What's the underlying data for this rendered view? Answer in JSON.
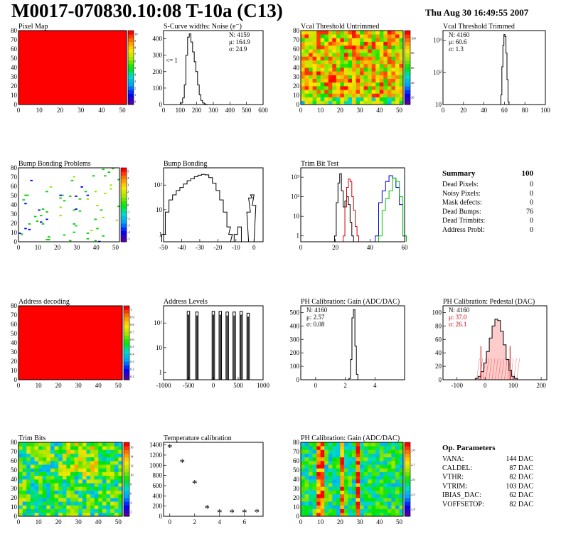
{
  "header": {
    "title": "M0017-070830.10:08 T-10a (C13)",
    "timestamp": "Thu Aug 30 16:49:55 2007"
  },
  "colors": {
    "frame": "#000000",
    "map_red": "#ff0000",
    "trim_black": "#000000",
    "trim_red": "#d00000",
    "trim_blue": "#0000c8",
    "trim_green": "#00c800",
    "pedestal_red": "#cc0000"
  },
  "summary": {
    "title": "Summary",
    "total": "100",
    "rows": [
      {
        "label": "Dead Pixels:",
        "value": "0"
      },
      {
        "label": "Noisy Pixels:",
        "value": "0"
      },
      {
        "label": "Mask defects:",
        "value": "0"
      },
      {
        "label": "Dead Bumps:",
        "value": "76"
      },
      {
        "label": "Dead Trimbits:",
        "value": "0"
      },
      {
        "label": "Address Probl:",
        "value": "0"
      }
    ]
  },
  "parameters": {
    "title": "Op. Parameters",
    "rows": [
      {
        "label": "VANA:",
        "value": "144 DAC"
      },
      {
        "label": "CALDEL:",
        "value": "87 DAC"
      },
      {
        "label": "VTHR:",
        "value": "82 DAC"
      },
      {
        "label": "VTRIM:",
        "value": "103 DAC"
      },
      {
        "label": "IBIAS_DAC:",
        "value": "62 DAC"
      },
      {
        "label": "VOFFSETOP:",
        "value": "82 DAC"
      }
    ]
  },
  "chart_data": [
    {
      "id": "pixel-map",
      "type": "heatmap",
      "title": "Pixel Map",
      "xlim": [
        0,
        52
      ],
      "ylim": [
        0,
        80
      ],
      "xticks": [
        0,
        10,
        20,
        30,
        40,
        50
      ],
      "yticks": [
        0,
        10,
        20,
        30,
        40,
        50,
        60,
        70,
        80
      ],
      "fill": "uniform",
      "fill_value": 10,
      "palette_ticks": [
        "0",
        "1",
        "2",
        "3",
        "4",
        "5",
        "6",
        "7",
        "8",
        "9",
        "10"
      ]
    },
    {
      "id": "scurve-noise",
      "type": "line",
      "title": "S-Curve widths: Noise (e⁻)",
      "xlim": [
        0,
        600
      ],
      "ylim": [
        0,
        450
      ],
      "xticks": [
        0,
        100,
        200,
        300,
        400,
        500,
        600
      ],
      "yticks": [
        0,
        100,
        200,
        300,
        400
      ],
      "annotation": "<= 1",
      "stats": [
        "N: 4159",
        "μ: 164.9",
        "σ: 24.9"
      ],
      "series": [
        {
          "x": [
            100,
            110,
            120,
            130,
            140,
            150,
            160,
            170,
            180,
            190,
            200,
            210,
            220,
            230,
            240,
            250,
            260,
            270
          ],
          "y": [
            0,
            10,
            40,
            120,
            300,
            410,
            430,
            380,
            320,
            260,
            200,
            120,
            60,
            25,
            10,
            4,
            1,
            0
          ]
        }
      ]
    },
    {
      "id": "vcal-untrimmed",
      "type": "heatmap",
      "title": "Vcal Threshold Untrimmed",
      "xlim": [
        0,
        52
      ],
      "ylim": [
        0,
        80
      ],
      "xticks": [
        0,
        10,
        20,
        30,
        40,
        50
      ],
      "yticks": [
        0,
        10,
        20,
        30,
        40,
        50,
        60,
        70,
        80
      ],
      "fill": "noise",
      "palette_ticks": [
        "20",
        "40",
        "60",
        "80",
        "100"
      ]
    },
    {
      "id": "vcal-trimmed",
      "type": "line",
      "title": "Vcal Threshold Trimmed",
      "xlim": [
        0,
        100
      ],
      "logy": true,
      "xticks": [
        0,
        20,
        40,
        60,
        80,
        100
      ],
      "yticks": [
        "10",
        "10²",
        "10³"
      ],
      "stats": [
        "N: 4160",
        "μ: 60.6",
        "σ:  1.3"
      ],
      "series": [
        {
          "x": [
            56,
            57,
            58,
            59,
            60,
            61,
            62,
            63,
            64,
            65
          ],
          "y": [
            10,
            20,
            150,
            700,
            1500,
            1300,
            400,
            60,
            12,
            10
          ]
        }
      ]
    },
    {
      "id": "bump-bonding-problems",
      "type": "heatmap",
      "title": "Bump Bonding Problems",
      "xlim": [
        0,
        52
      ],
      "ylim": [
        0,
        80
      ],
      "xticks": [
        0,
        10,
        20,
        30,
        40,
        50
      ],
      "yticks": [
        0,
        10,
        20,
        30,
        40,
        50,
        60,
        70,
        80
      ],
      "fill": "sparse",
      "palette_ticks": [
        "-5",
        "-4",
        "-3",
        "-2",
        "-1",
        "0",
        "1",
        "2",
        "3",
        "4",
        "5"
      ]
    },
    {
      "id": "bump-bonding",
      "type": "line",
      "title": "Bump Bonding",
      "xlim": [
        -50,
        5
      ],
      "logy": true,
      "xticks": [
        -50,
        -40,
        -30,
        -20,
        -10,
        0
      ],
      "yticks": [
        "1",
        "10",
        "10²"
      ],
      "series": [
        {
          "x": [
            -50,
            -48,
            -46,
            -44,
            -42,
            -40,
            -38,
            -36,
            -34,
            -32,
            -30,
            -28,
            -26,
            -24,
            -22,
            -20,
            -18,
            -16,
            -14,
            -13,
            -12,
            -10,
            -8,
            -6,
            -4,
            -3,
            -2,
            -1,
            0,
            1,
            2
          ],
          "y": [
            1,
            8,
            25,
            40,
            60,
            80,
            110,
            150,
            180,
            220,
            250,
            270,
            260,
            200,
            120,
            60,
            25,
            8,
            2,
            1,
            0.5,
            1,
            2,
            0.5,
            0.5,
            8,
            30,
            40,
            15,
            0.5,
            0.5
          ]
        }
      ]
    },
    {
      "id": "trim-bit-test",
      "type": "line",
      "title": "Trim Bit Test",
      "xlim": [
        0,
        60
      ],
      "logy": true,
      "xticks": [
        0,
        20,
        40,
        60
      ],
      "yticks": [
        "1",
        "10",
        "10²",
        "10³"
      ],
      "series": [
        {
          "color": "#000000",
          "x": [
            20,
            21,
            22,
            23,
            24,
            25,
            26,
            27,
            28,
            29,
            30
          ],
          "y": [
            1,
            50,
            500,
            1500,
            200,
            30,
            60,
            100,
            40,
            5,
            1
          ]
        },
        {
          "color": "#d00000",
          "x": [
            25,
            26,
            27,
            28,
            29,
            30,
            31,
            32,
            33
          ],
          "y": [
            1,
            30,
            300,
            800,
            600,
            100,
            20,
            3,
            1
          ]
        },
        {
          "color": "#0000c8",
          "x": [
            44,
            46,
            48,
            50,
            52,
            54,
            56,
            58,
            60
          ],
          "y": [
            1,
            50,
            200,
            600,
            1200,
            900,
            300,
            40,
            1
          ]
        },
        {
          "color": "#00c800",
          "x": [
            46,
            48,
            50,
            52,
            54,
            56,
            58,
            60
          ],
          "y": [
            1,
            20,
            80,
            200,
            900,
            600,
            100,
            1
          ]
        }
      ]
    },
    {
      "id": "address-decoding",
      "type": "heatmap",
      "title": "Address decoding",
      "xlim": [
        0,
        52
      ],
      "ylim": [
        0,
        80
      ],
      "xticks": [
        0,
        10,
        20,
        30,
        40,
        50
      ],
      "yticks": [
        0,
        10,
        20,
        30,
        40,
        50,
        60,
        70,
        80
      ],
      "fill": "uniform",
      "fill_value": 1,
      "palette_ticks": [
        "0.1",
        "0.2",
        "0.3",
        "0.4",
        "0.5",
        "0.6",
        "0.7",
        "0.8",
        "0.9",
        "1"
      ]
    },
    {
      "id": "address-levels",
      "type": "line",
      "title": "Address Levels",
      "xlim": [
        -1000,
        1000
      ],
      "logy": true,
      "xticks": [
        -1000,
        -500,
        0,
        500,
        1000
      ],
      "yticks": [
        "1",
        "10",
        "10²"
      ],
      "peaks": [
        -500,
        -330,
        0,
        140,
        280,
        420,
        560,
        700
      ],
      "peak_heights": [
        300,
        280,
        300,
        300,
        280,
        280,
        300,
        250
      ]
    },
    {
      "id": "ph-gain",
      "type": "line",
      "title": "PH Calibration: Gain (ADC/DAC)",
      "xlim": [
        -1,
        6
      ],
      "ylim": [
        0,
        550
      ],
      "xticks": [
        0,
        2,
        4
      ],
      "yticks": [
        0,
        100,
        200,
        300,
        400,
        500
      ],
      "stats": [
        "N: 4160",
        "μ: 2.57",
        "σ: 0.08"
      ],
      "series": [
        {
          "x": [
            2.2,
            2.3,
            2.4,
            2.5,
            2.6,
            2.7,
            2.8,
            2.9
          ],
          "y": [
            0,
            10,
            150,
            460,
            520,
            250,
            40,
            0
          ]
        }
      ]
    },
    {
      "id": "ph-pedestal",
      "type": "line",
      "title": "PH Calibration: Pedestal (DAC)",
      "xlim": [
        -150,
        220
      ],
      "ylim": [
        0,
        110
      ],
      "xticks": [
        -100,
        0,
        100,
        200
      ],
      "yticks": [
        0,
        20,
        40,
        60,
        80,
        100
      ],
      "stats": [
        "N: 4160",
        "μ: 37.0",
        "σ: 26.1"
      ],
      "cuts": [
        -15,
        89
      ],
      "series": [
        {
          "x": [
            -40,
            -30,
            -20,
            -10,
            0,
            10,
            20,
            30,
            40,
            50,
            60,
            70,
            80,
            90,
            100,
            110,
            120
          ],
          "y": [
            0,
            2,
            5,
            12,
            25,
            42,
            62,
            80,
            90,
            88,
            72,
            52,
            30,
            14,
            5,
            2,
            0
          ]
        }
      ]
    },
    {
      "id": "trim-bits",
      "type": "heatmap",
      "title": "Trim Bits",
      "xlim": [
        0,
        52
      ],
      "ylim": [
        0,
        80
      ],
      "xticks": [
        0,
        10,
        20,
        30,
        40,
        50
      ],
      "yticks": [
        0,
        10,
        20,
        30,
        40,
        50,
        60,
        70,
        80
      ],
      "fill": "noise",
      "palette_ticks": [
        "2",
        "4",
        "6",
        "8",
        "10",
        "12",
        "14",
        "16"
      ]
    },
    {
      "id": "temperature-calibration",
      "type": "scatter",
      "title": "Temperature calibration",
      "xlim": [
        -0.5,
        7.5
      ],
      "ylim": [
        0,
        1450
      ],
      "xticks": [
        0,
        2,
        4,
        6
      ],
      "yticks": [
        0,
        200,
        400,
        600,
        800,
        1000,
        1200,
        1400
      ],
      "series": [
        {
          "x": [
            0,
            1,
            2,
            3,
            4,
            5,
            6,
            7
          ],
          "y": [
            1350,
            1060,
            650,
            160,
            80,
            80,
            75,
            85
          ]
        }
      ]
    },
    {
      "id": "ph-gain-map",
      "type": "heatmap",
      "title": "PH Calibration: Gain (ADC/DAC)",
      "xlim": [
        0,
        52
      ],
      "ylim": [
        0,
        80
      ],
      "xticks": [
        0,
        10,
        20,
        30,
        40,
        50
      ],
      "yticks": [
        0,
        10,
        20,
        30,
        40,
        50,
        60,
        70,
        80
      ],
      "fill": "columns",
      "palette_ticks": [
        "2.4",
        "2.5",
        "2.6",
        "2.7",
        "2.8"
      ]
    }
  ]
}
